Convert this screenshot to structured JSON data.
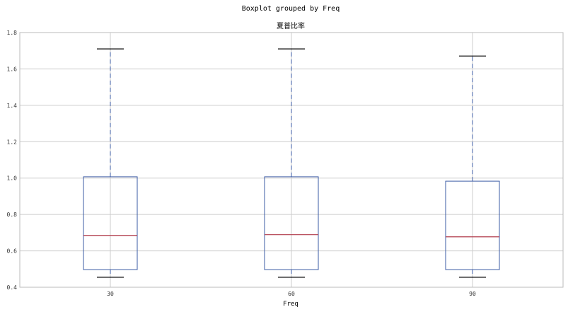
{
  "chart_data": {
    "type": "box",
    "suptitle": "Boxplot grouped by Freq",
    "title": "夏普比率",
    "xlabel": "Freq",
    "ylabel": "",
    "categories": [
      "30",
      "60",
      "90"
    ],
    "ylim": [
      0.4,
      1.8
    ],
    "yticks": [
      "0.4",
      "0.6",
      "0.8",
      "1.0",
      "1.2",
      "1.4",
      "1.6",
      "1.8"
    ],
    "grid": true,
    "boxes": [
      {
        "category": "30",
        "whisker_low": 0.455,
        "q1": 0.497,
        "median": 0.685,
        "q3": 1.007,
        "whisker_high": 1.71
      },
      {
        "category": "60",
        "whisker_low": 0.455,
        "q1": 0.497,
        "median": 0.689,
        "q3": 1.007,
        "whisker_high": 1.71
      },
      {
        "category": "90",
        "whisker_low": 0.455,
        "q1": 0.497,
        "median": 0.677,
        "q3": 0.983,
        "whisker_high": 1.671
      }
    ],
    "colors": {
      "box": "#3b5ba5",
      "median": "#b03a4a",
      "whisker": "#3b5ba5",
      "cap": "#000000",
      "grid": "#cccccc",
      "frame": "#bbbbbb"
    }
  }
}
